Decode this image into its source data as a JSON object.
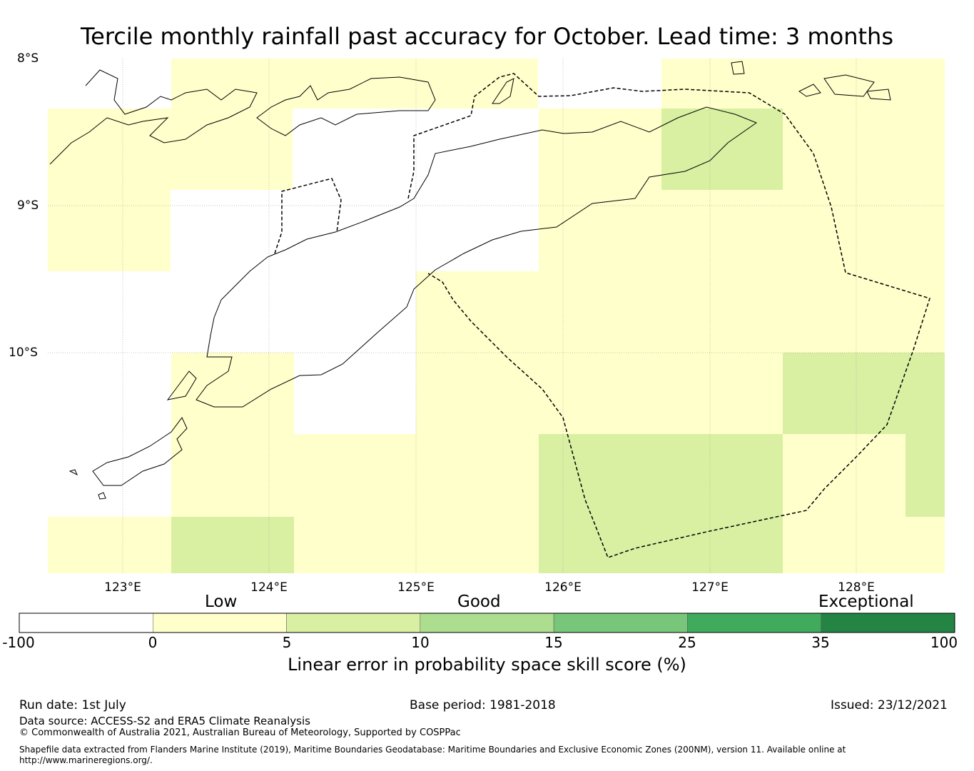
{
  "title": "Tercile monthly rainfall past accuracy for October. Lead time: 3 months",
  "map": {
    "lat_labels": [
      "8°S",
      "9°S",
      "10°S"
    ],
    "lon_labels": [
      "123°E",
      "124°E",
      "125°E",
      "126°E",
      "127°E",
      "128°E"
    ],
    "colors": {
      "no_skill": "#ffffff",
      "low": "#ffffcc",
      "good_low": "#d9f0a3",
      "good": "#addd8e",
      "good_high": "#78c679",
      "exceptional_low": "#41ab5d",
      "exceptional": "#238443",
      "coast": "#000000",
      "eez_boundary": "#000000"
    },
    "icons": {
      "coastline": "timor-coastline-icon",
      "eez": "eez-dashed-boundary-icon"
    }
  },
  "colorbar": {
    "category_labels": [
      "Low",
      "Good",
      "Exceptional"
    ],
    "ticks": [
      "-100",
      "0",
      "5",
      "10",
      "15",
      "25",
      "35",
      "100"
    ],
    "title": "Linear error in probability space skill score (%)"
  },
  "footer": {
    "run_date": "Run date: 1st July",
    "base_period": "Base period: 1981-2018",
    "issued": "Issued: 23/12/2021",
    "data_source": "Data source: ACCESS-S2 and ERA5 Climate Reanalysis",
    "copyright": "© Commonwealth of Australia 2021, Australian Bureau of Meteorology, Supported by COSPPac",
    "shapefile_line1": "Shapefile data extracted from Flanders Marine Institute (2019), Maritime Boundaries Geodatabase: Maritime Boundaries and Exclusive Economic Zones (200NM), version 11. Available online at",
    "shapefile_line2": "http://www.marineregions.org/."
  }
}
